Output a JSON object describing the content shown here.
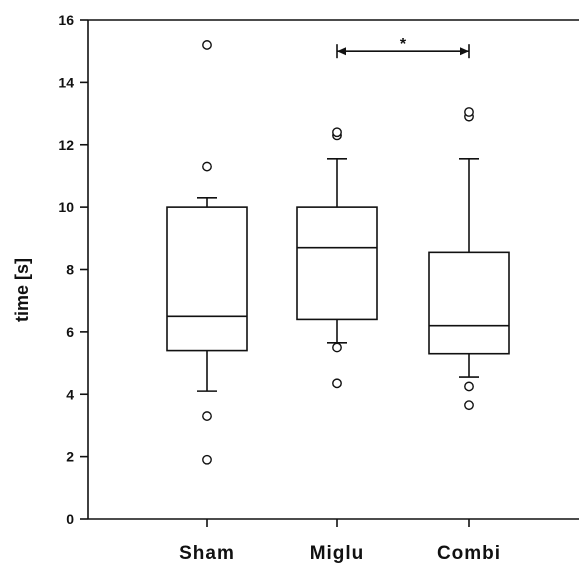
{
  "chart_data": {
    "type": "box",
    "ylabel": "time [s]",
    "ylim": [
      0,
      16
    ],
    "yticks": [
      0,
      2,
      4,
      6,
      8,
      10,
      12,
      14,
      16
    ],
    "categories": [
      "Sham",
      "Miglu",
      "Combi"
    ],
    "boxes": [
      {
        "category": "Sham",
        "q1": 5.4,
        "median": 6.5,
        "q3": 10.0,
        "whisker_low": 4.1,
        "whisker_high": 10.3,
        "outliers": [
          1.9,
          3.3,
          11.3,
          15.2
        ]
      },
      {
        "category": "Miglu",
        "q1": 6.4,
        "median": 8.7,
        "q3": 10.0,
        "whisker_low": 5.65,
        "whisker_high": 11.55,
        "outliers": [
          4.35,
          5.5,
          12.3,
          12.4
        ]
      },
      {
        "category": "Combi",
        "q1": 5.3,
        "median": 6.2,
        "q3": 8.55,
        "whisker_low": 4.55,
        "whisker_high": 11.55,
        "outliers": [
          3.65,
          4.25,
          12.9,
          13.05
        ]
      }
    ],
    "significance": {
      "from": "Miglu",
      "to": "Combi",
      "y": 15.0,
      "label": "*"
    },
    "legend": "none",
    "grid": false
  }
}
